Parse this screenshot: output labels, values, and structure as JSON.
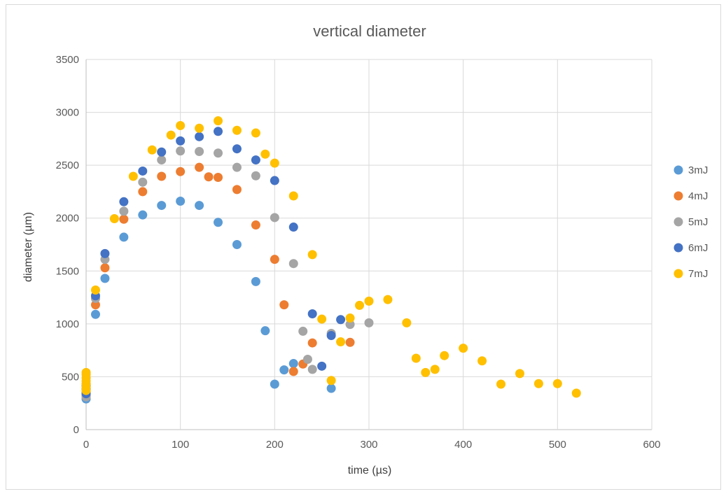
{
  "chart_data": {
    "type": "scatter",
    "title": "vertical diameter",
    "xlabel": "time (µs)",
    "ylabel": "diameter (µm)",
    "xlim": [
      0,
      600
    ],
    "ylim": [
      0,
      3500
    ],
    "xticks": [
      0,
      100,
      200,
      300,
      400,
      500,
      600
    ],
    "yticks": [
      0,
      500,
      1000,
      1500,
      2000,
      2500,
      3000,
      3500
    ],
    "grid": true,
    "legend_position": "right",
    "series": [
      {
        "name": "3mJ",
        "color": "#5b9bd5",
        "points": [
          [
            0,
            290
          ],
          [
            0,
            330
          ],
          [
            0,
            360
          ],
          [
            0,
            390
          ],
          [
            10,
            1090
          ],
          [
            20,
            1430
          ],
          [
            40,
            1820
          ],
          [
            60,
            2030
          ],
          [
            80,
            2120
          ],
          [
            100,
            2160
          ],
          [
            120,
            2120
          ],
          [
            140,
            1960
          ],
          [
            160,
            1750
          ],
          [
            180,
            1400
          ],
          [
            190,
            935
          ],
          [
            200,
            430
          ],
          [
            210,
            565
          ],
          [
            220,
            625
          ],
          [
            260,
            390
          ]
        ]
      },
      {
        "name": "4mJ",
        "color": "#ed7d31",
        "points": [
          [
            0,
            320
          ],
          [
            0,
            360
          ],
          [
            0,
            400
          ],
          [
            0,
            430
          ],
          [
            10,
            1180
          ],
          [
            20,
            1530
          ],
          [
            40,
            1990
          ],
          [
            60,
            2250
          ],
          [
            80,
            2395
          ],
          [
            100,
            2440
          ],
          [
            120,
            2480
          ],
          [
            130,
            2390
          ],
          [
            140,
            2385
          ],
          [
            160,
            2270
          ],
          [
            180,
            1935
          ],
          [
            200,
            1610
          ],
          [
            210,
            1180
          ],
          [
            220,
            550
          ],
          [
            230,
            620
          ],
          [
            240,
            820
          ],
          [
            280,
            825
          ]
        ]
      },
      {
        "name": "5mJ",
        "color": "#a5a5a5",
        "points": [
          [
            0,
            310
          ],
          [
            0,
            350
          ],
          [
            0,
            390
          ],
          [
            0,
            420
          ],
          [
            10,
            1240
          ],
          [
            20,
            1610
          ],
          [
            40,
            2065
          ],
          [
            60,
            2340
          ],
          [
            80,
            2550
          ],
          [
            100,
            2635
          ],
          [
            120,
            2630
          ],
          [
            140,
            2615
          ],
          [
            160,
            2480
          ],
          [
            180,
            2400
          ],
          [
            200,
            2005
          ],
          [
            220,
            1570
          ],
          [
            230,
            930
          ],
          [
            235,
            665
          ],
          [
            240,
            570
          ],
          [
            260,
            910
          ],
          [
            280,
            995
          ],
          [
            300,
            1010
          ]
        ]
      },
      {
        "name": "6mJ",
        "color": "#4472c4",
        "points": [
          [
            0,
            340
          ],
          [
            0,
            380
          ],
          [
            0,
            420
          ],
          [
            10,
            1265
          ],
          [
            20,
            1665
          ],
          [
            40,
            2155
          ],
          [
            60,
            2445
          ],
          [
            80,
            2625
          ],
          [
            100,
            2730
          ],
          [
            120,
            2770
          ],
          [
            140,
            2820
          ],
          [
            160,
            2655
          ],
          [
            180,
            2550
          ],
          [
            200,
            2355
          ],
          [
            220,
            1915
          ],
          [
            240,
            1095
          ],
          [
            250,
            600
          ],
          [
            260,
            890
          ],
          [
            270,
            1040
          ]
        ]
      },
      {
        "name": "7mJ",
        "color": "#ffc000",
        "points": [
          [
            0,
            370
          ],
          [
            0,
            400
          ],
          [
            0,
            430
          ],
          [
            0,
            460
          ],
          [
            0,
            490
          ],
          [
            0,
            520
          ],
          [
            0,
            540
          ],
          [
            10,
            1320
          ],
          [
            30,
            1995
          ],
          [
            50,
            2395
          ],
          [
            70,
            2645
          ],
          [
            90,
            2785
          ],
          [
            100,
            2875
          ],
          [
            120,
            2850
          ],
          [
            140,
            2920
          ],
          [
            160,
            2830
          ],
          [
            180,
            2805
          ],
          [
            190,
            2605
          ],
          [
            200,
            2520
          ],
          [
            220,
            2210
          ],
          [
            240,
            1655
          ],
          [
            250,
            1045
          ],
          [
            260,
            465
          ],
          [
            270,
            830
          ],
          [
            280,
            1055
          ],
          [
            290,
            1175
          ],
          [
            300,
            1215
          ],
          [
            320,
            1230
          ],
          [
            340,
            1010
          ],
          [
            350,
            675
          ],
          [
            360,
            540
          ],
          [
            370,
            570
          ],
          [
            380,
            700
          ],
          [
            400,
            770
          ],
          [
            420,
            650
          ],
          [
            440,
            430
          ],
          [
            460,
            530
          ],
          [
            480,
            435
          ],
          [
            500,
            435
          ],
          [
            520,
            345
          ]
        ]
      }
    ]
  }
}
